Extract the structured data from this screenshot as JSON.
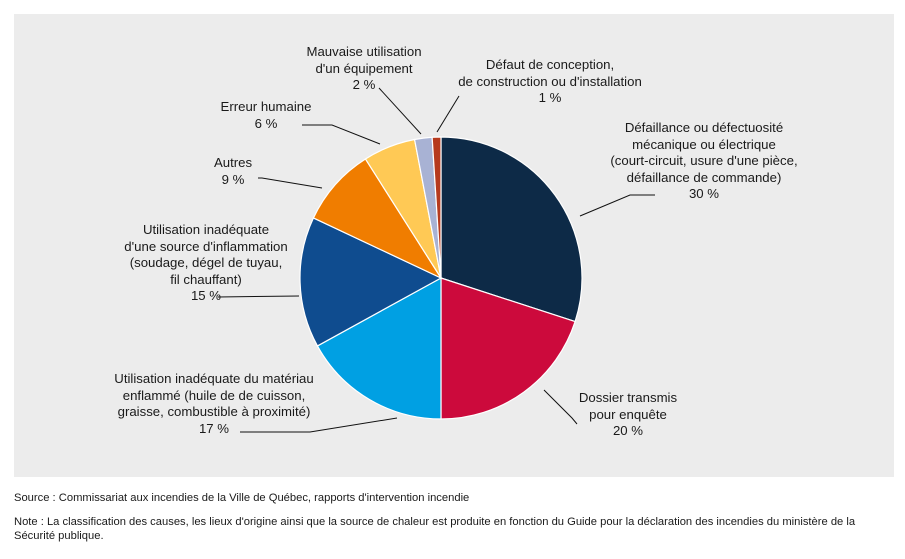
{
  "chart_data": {
    "type": "pie",
    "title": "",
    "categories": [
      "Défaillance ou défectuosité mécanique ou électrique (court-circuit, usure d'une pièce, défaillance de commande)",
      "Dossier transmis pour enquête",
      "Utilisation inadéquate du matériau enflammé (huile de de cuisson, graisse, combustible à proximité)",
      "Utilisation inadéquate d'une source d'inflammation (soudage, dégel de tuyau, fil chauffant)",
      "Autres",
      "Erreur humaine",
      "Mauvaise utilisation d'un équipement",
      "Défaut de conception, de construction ou d'installation"
    ],
    "values": [
      30,
      20,
      17,
      15,
      9,
      6,
      2,
      1
    ],
    "unit": "%",
    "slices": [
      {
        "name": "defaillance",
        "color": "#0d2a47",
        "value": 30,
        "lines": [
          "Défaillance ou défectuosité",
          "mécanique ou électrique",
          "(court-circuit, usure d'une pièce,",
          "défaillance de commande)"
        ],
        "pct": "30 %"
      },
      {
        "name": "dossier",
        "color": "#cc0a3c",
        "value": 20,
        "lines": [
          "Dossier transmis",
          "pour enquête"
        ],
        "pct": "20 %"
      },
      {
        "name": "materiau",
        "color": "#00a0e3",
        "value": 17,
        "lines": [
          "Utilisation inadéquate du matériau",
          "enflammé (huile de de cuisson,",
          "graisse, combustible à proximité)"
        ],
        "pct": "17 %"
      },
      {
        "name": "source",
        "color": "#0f4c8f",
        "value": 15,
        "lines": [
          "Utilisation inadéquate",
          "d'une source d'inflammation",
          "(soudage, dégel de tuyau,",
          "fil chauffant)"
        ],
        "pct": "15 %"
      },
      {
        "name": "autres",
        "color": "#f07d00",
        "value": 9,
        "lines": [
          "Autres"
        ],
        "pct": "9 %"
      },
      {
        "name": "erreur",
        "color": "#ffc955",
        "value": 6,
        "lines": [
          "Erreur humaine"
        ],
        "pct": "6 %"
      },
      {
        "name": "mauvaise",
        "color": "#a8b2d4",
        "value": 2,
        "lines": [
          "Mauvaise utilisation",
          "d'un équipement"
        ],
        "pct": "2 %"
      },
      {
        "name": "defaut",
        "color": "#b63a1e",
        "value": 1,
        "lines": [
          "Défaut de conception,",
          "de construction ou d'installation"
        ],
        "pct": "1 %"
      }
    ]
  },
  "notes": {
    "source": "Source : Commissariat aux incendies de la Ville de Québec, rapports d'intervention incendie",
    "note": "Note : La classification des causes, les lieux d'origine ainsi que la source de chaleur est produite en fonction du Guide pour la déclaration des incendies du ministère de la Sécurité publique."
  }
}
